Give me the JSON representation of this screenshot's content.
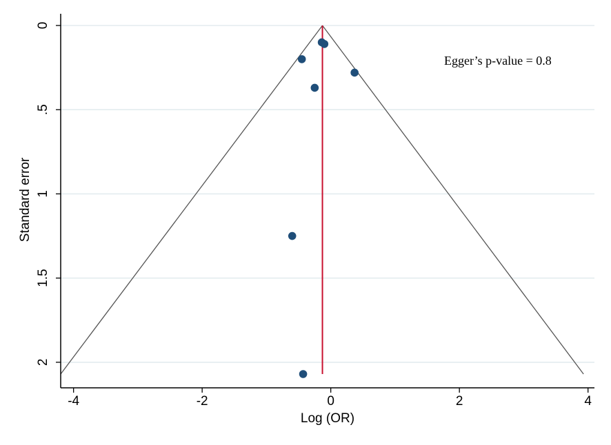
{
  "chart_data": {
    "type": "scatter",
    "title": "",
    "xlabel": "Log (OR)",
    "ylabel": "Standard error",
    "xlim": [
      -4.2,
      4.1
    ],
    "ylim": [
      0,
      2.07
    ],
    "y_inverted": true,
    "x_ticks": [
      -4,
      -2,
      0,
      2,
      4
    ],
    "x_tick_labels": [
      "-4",
      "-2",
      "0",
      "2",
      "4"
    ],
    "y_ticks": [
      0,
      0.5,
      1,
      1.5,
      2
    ],
    "y_tick_labels": [
      "0",
      ".5",
      "1",
      "1.5",
      "2"
    ],
    "grid": "horizontal",
    "annotation": "Egger’s p-value = 0.8",
    "pooled_estimate": -0.13,
    "funnel_limits": {
      "apex_x": -0.13,
      "apex_se": 0,
      "base_se": 2.07,
      "left_x": -4.2,
      "right_x": 3.93
    },
    "points": [
      {
        "x": -0.14,
        "y": 0.1
      },
      {
        "x": -0.1,
        "y": 0.11
      },
      {
        "x": -0.45,
        "y": 0.2
      },
      {
        "x": 0.37,
        "y": 0.28
      },
      {
        "x": -0.25,
        "y": 0.37
      },
      {
        "x": -0.6,
        "y": 1.25
      },
      {
        "x": -0.43,
        "y": 2.07
      }
    ],
    "colors": {
      "points": "#1f4e79",
      "pooled_line": "#c8102e",
      "funnel": "#555555",
      "grid": "#e3ecef",
      "axis": "#000000"
    }
  }
}
